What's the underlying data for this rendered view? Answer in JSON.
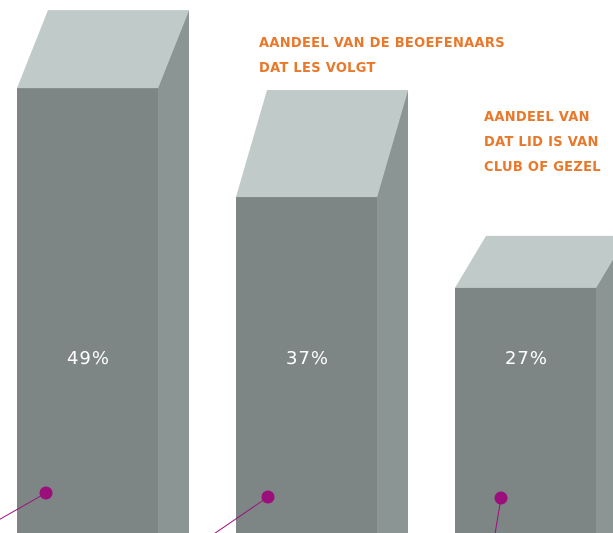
{
  "chart_data": {
    "type": "bar3d",
    "categories": [
      null,
      null,
      null
    ],
    "values": [
      49,
      37,
      27
    ],
    "value_labels": [
      "49%",
      "37%",
      "27%"
    ],
    "colors": {
      "front": "#7e8685",
      "side": "#8b9594",
      "top": "#bfcac9",
      "marker": "#9b0f7d"
    },
    "annotations": [
      {
        "lines": [
          "AANDEEL VAN DE BEOEFENAARS",
          "DAT LES VOLGT"
        ]
      },
      {
        "lines": [
          "AANDEEL VAN",
          "DAT LID IS VAN",
          "CLUB OF GEZEL"
        ]
      }
    ]
  }
}
